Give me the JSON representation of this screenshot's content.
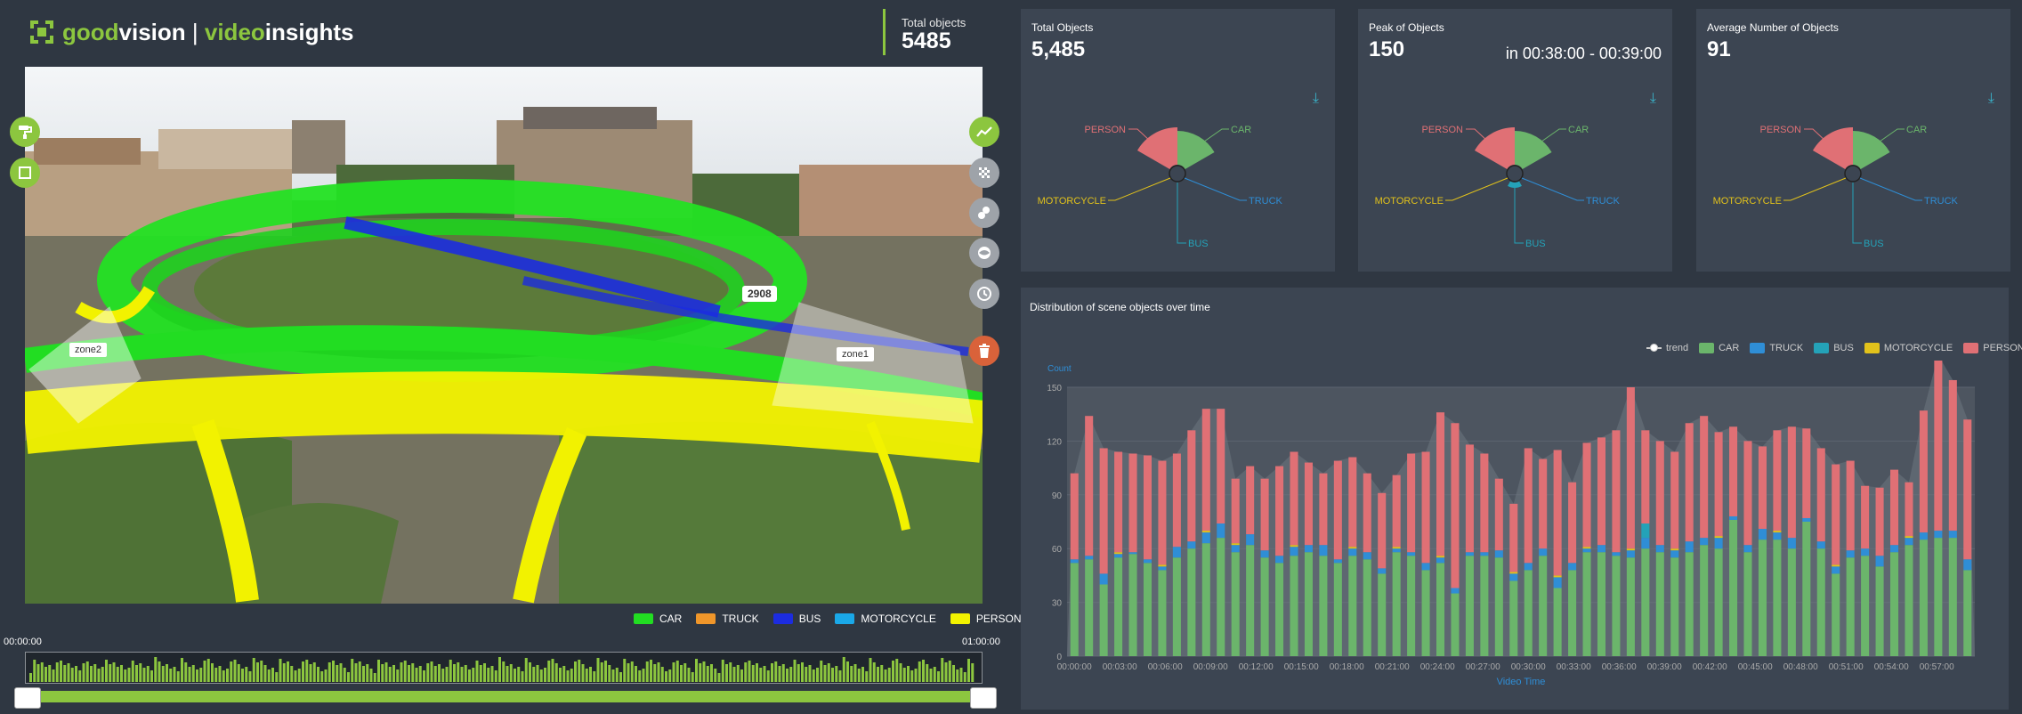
{
  "header": {
    "brand_good": "good",
    "brand_vision": "vision",
    "brand_sep": " | ",
    "brand_video": "video",
    "brand_insights": "insights",
    "total_label": "Total objects",
    "total_value": "5485"
  },
  "video": {
    "tools_left": [
      {
        "icon": "paint-roller-icon"
      },
      {
        "icon": "square-icon"
      }
    ],
    "tools_right": [
      {
        "icon": "trend-line-icon"
      },
      {
        "icon": "heatmap-icon"
      },
      {
        "icon": "clusters-icon"
      },
      {
        "icon": "mask-icon"
      },
      {
        "icon": "clock-icon"
      },
      {
        "icon": "trash-icon"
      }
    ],
    "zones": [
      {
        "name": "zone2"
      },
      {
        "name": "zone1"
      }
    ],
    "counter": "2908",
    "legend": [
      {
        "label": "CAR",
        "color": "#22dd22"
      },
      {
        "label": "TRUCK",
        "color": "#f0962a"
      },
      {
        "label": "BUS",
        "color": "#1c2ce0"
      },
      {
        "label": "MOTORCYCLE",
        "color": "#1aa8e8"
      },
      {
        "label": "PERSON",
        "color": "#f2f200"
      }
    ]
  },
  "timeline": {
    "start": "00:00:00",
    "end": "01:00:00"
  },
  "cards": [
    {
      "title": "Total Objects",
      "value": "5,485",
      "sub": ""
    },
    {
      "title": "Peak of Objects",
      "value": "150",
      "sub": "in 00:38:00 - 00:39:00"
    },
    {
      "title": "Average Number of Objects",
      "value": "91",
      "sub": ""
    }
  ],
  "radial_labels": {
    "person": "PERSON",
    "car": "CAR",
    "motorcycle": "MOTORCYCLE",
    "truck": "TRUCK",
    "bus": "BUS"
  },
  "chart_data": {
    "type": "bar",
    "title": "Distribution of scene objects over time",
    "ylabel": "Count",
    "xlabel": "Video Time",
    "ylim": [
      0,
      150
    ],
    "yticks": [
      0,
      30,
      60,
      90,
      120,
      150
    ],
    "xticks": [
      "00:00:00",
      "00:03:00",
      "00:06:00",
      "00:09:00",
      "00:12:00",
      "00:15:00",
      "00:18:00",
      "00:21:00",
      "00:24:00",
      "00:27:00",
      "00:30:00",
      "00:33:00",
      "00:36:00",
      "00:39:00",
      "00:42:00",
      "00:45:00",
      "00:48:00",
      "00:51:00",
      "00:54:00",
      "00:57:00"
    ],
    "legend": [
      {
        "label": "trend",
        "color": "#cccccc"
      },
      {
        "label": "CAR",
        "color": "#6bb56b"
      },
      {
        "label": "TRUCK",
        "color": "#2f8ed6"
      },
      {
        "label": "BUS",
        "color": "#24a2b8"
      },
      {
        "label": "MOTORCYCLE",
        "color": "#e2c21b"
      },
      {
        "label": "PERSON",
        "color": "#e07075"
      }
    ],
    "series": [
      {
        "name": "CAR",
        "values": [
          52,
          54,
          40,
          55,
          57,
          52,
          48,
          55,
          60,
          63,
          66,
          58,
          62,
          55,
          52,
          56,
          58,
          56,
          52,
          56,
          54,
          46,
          58,
          56,
          48,
          52,
          35,
          56,
          56,
          55,
          42,
          48,
          56,
          38,
          48,
          58,
          58,
          56,
          55,
          60,
          58,
          55,
          58,
          62,
          60,
          76,
          58,
          65,
          65,
          60,
          75,
          60,
          46,
          55,
          56,
          50,
          58,
          62,
          65,
          66,
          66,
          48
        ]
      },
      {
        "name": "TRUCK",
        "values": [
          2,
          2,
          6,
          2,
          1,
          2,
          2,
          6,
          4,
          6,
          8,
          4,
          6,
          4,
          4,
          5,
          4,
          6,
          2,
          4,
          4,
          3,
          2,
          2,
          4,
          3,
          3,
          2,
          2,
          4,
          4,
          4,
          4,
          6,
          4,
          2,
          4,
          2,
          4,
          6,
          4,
          4,
          6,
          4,
          6,
          2,
          4,
          6,
          4,
          6,
          2,
          4,
          4,
          4,
          4,
          6,
          4,
          4,
          4,
          4,
          4,
          6
        ]
      },
      {
        "name": "BUS",
        "values": [
          0,
          0,
          0,
          0,
          0,
          0,
          0,
          0,
          0,
          0,
          0,
          0,
          0,
          0,
          0,
          0,
          0,
          0,
          0,
          0,
          0,
          0,
          0,
          0,
          0,
          0,
          0,
          0,
          0,
          0,
          0,
          0,
          0,
          0,
          0,
          0,
          0,
          0,
          0,
          8,
          0,
          0,
          0,
          0,
          0,
          0,
          0,
          0,
          0,
          0,
          0,
          0,
          0,
          0,
          0,
          0,
          0,
          0,
          0,
          0,
          0,
          0
        ]
      },
      {
        "name": "MOTORCYCLE",
        "values": [
          0,
          0,
          0,
          1,
          0,
          0,
          1,
          0,
          0,
          1,
          0,
          1,
          0,
          0,
          0,
          1,
          0,
          0,
          0,
          1,
          0,
          0,
          1,
          0,
          0,
          1,
          0,
          0,
          0,
          0,
          1,
          0,
          0,
          1,
          0,
          1,
          0,
          0,
          1,
          0,
          0,
          1,
          0,
          0,
          1,
          0,
          0,
          0,
          1,
          0,
          0,
          0,
          1,
          0,
          0,
          0,
          0,
          1,
          0,
          0,
          0,
          0
        ]
      },
      {
        "name": "PERSON",
        "values": [
          48,
          78,
          70,
          56,
          55,
          58,
          58,
          52,
          62,
          68,
          64,
          36,
          38,
          40,
          50,
          52,
          46,
          40,
          55,
          50,
          44,
          42,
          40,
          55,
          62,
          80,
          92,
          60,
          55,
          40,
          38,
          64,
          50,
          70,
          45,
          58,
          60,
          68,
          90,
          52,
          58,
          54,
          66,
          68,
          58,
          50,
          58,
          46,
          56,
          62,
          50,
          52,
          56,
          50,
          35,
          38,
          42,
          30,
          68,
          98,
          84,
          78
        ]
      }
    ]
  }
}
